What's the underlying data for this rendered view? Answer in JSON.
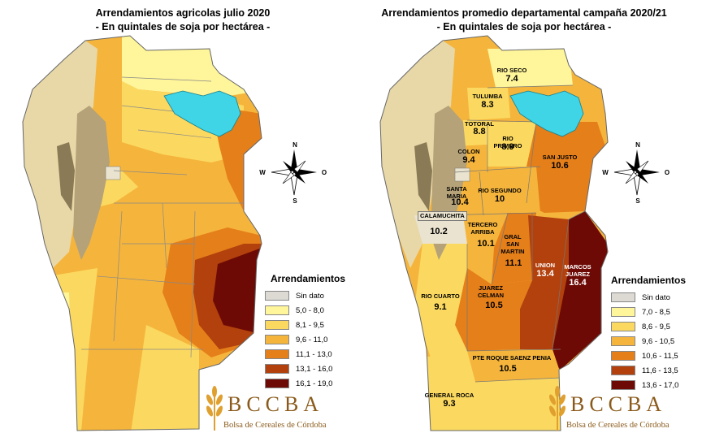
{
  "left_panel": {
    "title": "Arrendamientos agricolas julio 2020",
    "subtitle": "- En quintales de soja por hectárea -",
    "legend_title": "Arrendamientos",
    "legend": [
      {
        "label": "Sin dato",
        "color": "#dcdad2"
      },
      {
        "label": "5,0 - 8,0",
        "color": "#fff59a"
      },
      {
        "label": "8,1 - 9,5",
        "color": "#fbd960"
      },
      {
        "label": "9,6 - 11,0",
        "color": "#f5b53c"
      },
      {
        "label": "11,1 - 13,0",
        "color": "#e57f1a"
      },
      {
        "label": "13,1 - 16,0",
        "color": "#b2410d"
      },
      {
        "label": "16,1 - 19,0",
        "color": "#6e0a05"
      }
    ]
  },
  "right_panel": {
    "title": "Arrendamientos promedio departamental campaña 2020/21",
    "subtitle": "- En quintales de soja por hectárea -",
    "legend_title": "Arrendamientos",
    "legend": [
      {
        "label": "Sin dato",
        "color": "#dcdad2"
      },
      {
        "label": "7,0 - 8,5",
        "color": "#fff59a"
      },
      {
        "label": "8,6 - 9,5",
        "color": "#fbd960"
      },
      {
        "label": "9,6 - 10,5",
        "color": "#f5b53c"
      },
      {
        "label": "10,6 - 11,5",
        "color": "#e57f1a"
      },
      {
        "label": "11,6 - 13,5",
        "color": "#b2410d"
      },
      {
        "label": "13,6 - 17,0",
        "color": "#6e0a05"
      }
    ],
    "departments": [
      {
        "name": "RIO SECO",
        "value": "7.4"
      },
      {
        "name": "TULUMBA",
        "value": "8.3"
      },
      {
        "name": "TOTORAL",
        "value": "8.8"
      },
      {
        "name": "RIO PRIMERO",
        "value": "8.9"
      },
      {
        "name": "COLON",
        "value": "9.4"
      },
      {
        "name": "SAN JUSTO",
        "value": "10.6"
      },
      {
        "name": "SANTA MARIA",
        "value": "10.4"
      },
      {
        "name": "RIO SEGUNDO",
        "value": "10"
      },
      {
        "name": "CALAMUCHITA",
        "value": "10.2"
      },
      {
        "name": "TERCERO ARRIBA",
        "value": "10.1"
      },
      {
        "name": "GRAL SAN MARTIN",
        "value": "11.1"
      },
      {
        "name": "UNION",
        "value": "13.4"
      },
      {
        "name": "MARCOS JUAREZ",
        "value": "16.4"
      },
      {
        "name": "RIO CUARTO",
        "value": "9.1"
      },
      {
        "name": "JUAREZ CELMAN",
        "value": "10.5"
      },
      {
        "name": "PTE ROQUE SAENZ PENIA",
        "value": "10.5"
      },
      {
        "name": "GENERAL ROCA",
        "value": "9.3"
      }
    ]
  },
  "compass": {
    "n": "N",
    "s": "S",
    "e": "O",
    "w": "W"
  },
  "logo": {
    "name": "BCCBA",
    "subtitle": "Bolsa de Cereales de Córdoba"
  },
  "colors": {
    "lake": "#3fd4e6",
    "relief": "#e8d8a8",
    "sierra": "#8a7a55"
  }
}
